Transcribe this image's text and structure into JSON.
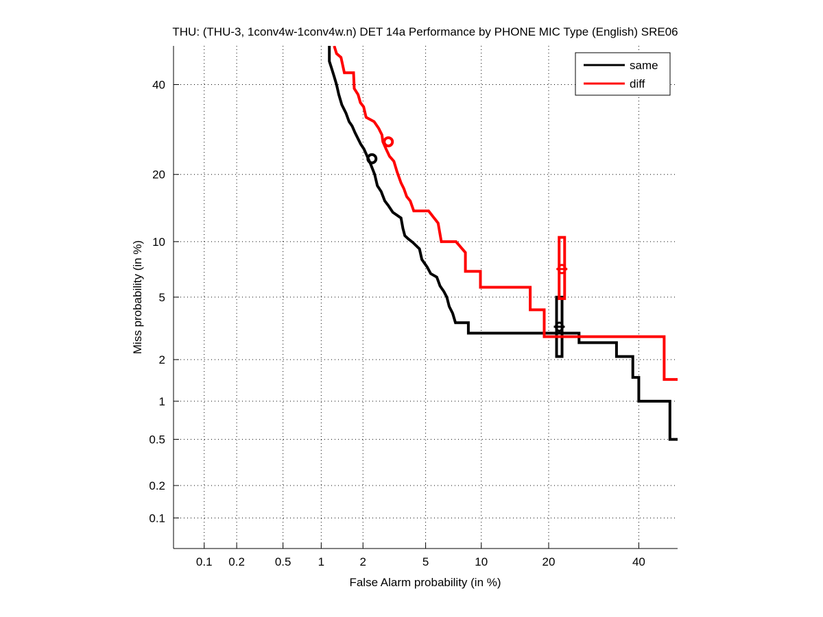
{
  "chart_data": {
    "type": "line",
    "scale": "probit",
    "title": "THU: (THU-3, 1conv4w-1conv4w.n) DET 14a Performance by PHONE MIC Type (English) SRE06",
    "xlabel": "False Alarm probability (in %)",
    "ylabel": "Miss probability (in %)",
    "xlim": [
      0.05,
      50
    ],
    "ylim": [
      0.05,
      50
    ],
    "grid": true,
    "legend_position": "top-right",
    "xticks": [
      0.1,
      0.2,
      0.5,
      1,
      2,
      5,
      10,
      20,
      40
    ],
    "xtick_labels": [
      "0.1",
      "0.2",
      "0.5",
      "1",
      "2",
      "5",
      "10",
      "20",
      "40"
    ],
    "yticks": [
      0.1,
      0.2,
      0.5,
      1,
      2,
      5,
      10,
      20,
      40
    ],
    "ytick_labels": [
      "0.1",
      "0.2",
      "0.5",
      "1",
      "2",
      "5",
      "10",
      "20",
      "40"
    ],
    "series": [
      {
        "name": "same",
        "color": "#000000",
        "points": [
          [
            1.15,
            50
          ],
          [
            1.15,
            46
          ],
          [
            1.2,
            44
          ],
          [
            1.25,
            42
          ],
          [
            1.3,
            40
          ],
          [
            1.35,
            37.5
          ],
          [
            1.42,
            35
          ],
          [
            1.52,
            33
          ],
          [
            1.6,
            31
          ],
          [
            1.68,
            30
          ],
          [
            1.76,
            28.5
          ],
          [
            1.86,
            27
          ],
          [
            1.93,
            26
          ],
          [
            2.03,
            25
          ],
          [
            2.1,
            24
          ],
          [
            2.25,
            22
          ],
          [
            2.4,
            20
          ],
          [
            2.5,
            18
          ],
          [
            2.65,
            17
          ],
          [
            2.8,
            15.5
          ],
          [
            2.95,
            14.8
          ],
          [
            3.15,
            13.8
          ],
          [
            3.55,
            13
          ],
          [
            3.65,
            11.6
          ],
          [
            3.75,
            10.7
          ],
          [
            3.95,
            10.3
          ],
          [
            4.2,
            9.9
          ],
          [
            4.6,
            9.2
          ],
          [
            4.75,
            8.1
          ],
          [
            5.1,
            7.4
          ],
          [
            5.35,
            6.8
          ],
          [
            5.8,
            6.5
          ],
          [
            6.05,
            5.8
          ],
          [
            6.35,
            5.4
          ],
          [
            6.6,
            5.0
          ],
          [
            6.8,
            4.4
          ],
          [
            7.1,
            4.0
          ],
          [
            7.35,
            3.5
          ],
          [
            8.6,
            3.5
          ],
          [
            8.6,
            3.0
          ],
          [
            20.8,
            3.0
          ],
          [
            26,
            3.0
          ],
          [
            26,
            2.6
          ],
          [
            34.5,
            2.6
          ],
          [
            34.5,
            2.1
          ],
          [
            38.5,
            2.1
          ],
          [
            38.5,
            1.5
          ],
          [
            40,
            1.5
          ],
          [
            40,
            1.0
          ],
          [
            48,
            1.0
          ],
          [
            48,
            0.5
          ],
          [
            50,
            0.5
          ]
        ],
        "min_dcf_point": [
          2.3,
          23
        ],
        "eer_bar": {
          "fa": 22,
          "miss_low": 2.1,
          "miss_high": 5.0,
          "marker_miss": 3.3
        }
      },
      {
        "name": "diff",
        "color": "#ff0000",
        "points": [
          [
            1.25,
            50
          ],
          [
            1.3,
            48
          ],
          [
            1.4,
            47
          ],
          [
            1.48,
            43
          ],
          [
            1.72,
            43
          ],
          [
            1.74,
            39
          ],
          [
            1.85,
            37.5
          ],
          [
            1.92,
            35.5
          ],
          [
            2.02,
            34.5
          ],
          [
            2.1,
            32
          ],
          [
            2.38,
            31
          ],
          [
            2.55,
            29.5
          ],
          [
            2.68,
            28
          ],
          [
            2.72,
            26.5
          ],
          [
            2.85,
            25
          ],
          [
            3.0,
            23.5
          ],
          [
            3.2,
            22.5
          ],
          [
            3.35,
            20.5
          ],
          [
            3.55,
            18.5
          ],
          [
            3.7,
            17.5
          ],
          [
            3.85,
            16.2
          ],
          [
            4.05,
            15.5
          ],
          [
            4.25,
            14
          ],
          [
            5.2,
            14
          ],
          [
            5.9,
            12.3
          ],
          [
            6.15,
            10
          ],
          [
            7.4,
            10
          ],
          [
            8.3,
            8.8
          ],
          [
            8.3,
            7
          ],
          [
            9.9,
            7
          ],
          [
            9.9,
            5.7
          ],
          [
            16.8,
            5.7
          ],
          [
            16.8,
            4.2
          ],
          [
            19.2,
            4.2
          ],
          [
            19.2,
            2.85
          ],
          [
            46.5,
            2.85
          ],
          [
            46.5,
            1.45
          ],
          [
            50,
            1.45
          ]
        ],
        "min_dcf_point": [
          2.95,
          26.5
        ],
        "eer_bar": {
          "fa": 22.5,
          "miss_low": 4.9,
          "miss_high": 10.5,
          "marker_miss": 7.2
        }
      }
    ]
  }
}
